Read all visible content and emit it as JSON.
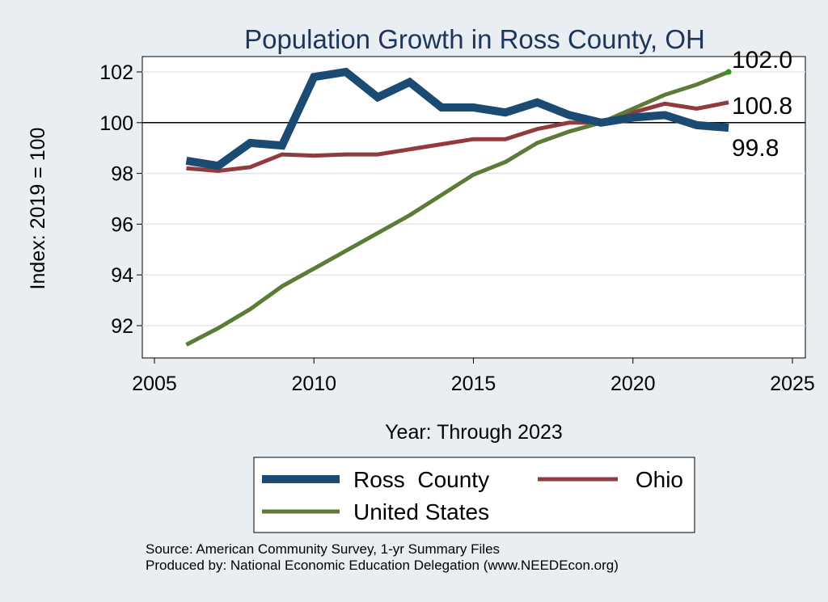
{
  "chart_data": {
    "type": "line",
    "title": "Population Growth in Ross County, OH",
    "xlabel": "Year: Through 2023",
    "ylabel": "Index: 2019 = 100",
    "xlim": [
      2005,
      2025
    ],
    "ylim": [
      91.2,
      102.5
    ],
    "xticks": [
      2005,
      2010,
      2015,
      2020,
      2025
    ],
    "yticks": [
      92,
      94,
      96,
      98,
      100,
      102
    ],
    "reference_line": 100,
    "grid": true,
    "legend_position": "bottom",
    "x": [
      2006,
      2007,
      2008,
      2009,
      2010,
      2011,
      2012,
      2013,
      2014,
      2015,
      2016,
      2017,
      2018,
      2019,
      2020,
      2021,
      2022,
      2023
    ],
    "series": [
      {
        "name": "Ross  County",
        "color": "#1b4a72",
        "values": [
          98.5,
          98.3,
          99.2,
          99.1,
          101.8,
          102.0,
          101.0,
          101.6,
          100.6,
          100.6,
          100.4,
          100.8,
          100.3,
          100.0,
          100.2,
          100.3,
          99.9,
          99.8
        ]
      },
      {
        "name": "Ohio",
        "color": "#933a3f",
        "values": [
          98.2,
          98.1,
          98.25,
          98.75,
          98.7,
          98.75,
          98.75,
          98.95,
          99.15,
          99.35,
          99.35,
          99.75,
          100.0,
          100.0,
          100.4,
          100.75,
          100.55,
          100.8
        ]
      },
      {
        "name": "United States",
        "color": "#5b7b37",
        "values": [
          91.25,
          91.9,
          92.65,
          93.55,
          94.25,
          94.95,
          95.65,
          96.35,
          97.15,
          97.95,
          98.45,
          99.2,
          99.65,
          100.0,
          100.55,
          101.1,
          101.5,
          102.0
        ]
      }
    ],
    "end_labels": [
      "102.0",
      "100.8",
      "99.8"
    ]
  },
  "source_lines": [
    "Source: American Community Survey, 1-yr Summary Files",
    "Produced by: National Economic Education Delegation (www.NEEDEcon.org)"
  ]
}
